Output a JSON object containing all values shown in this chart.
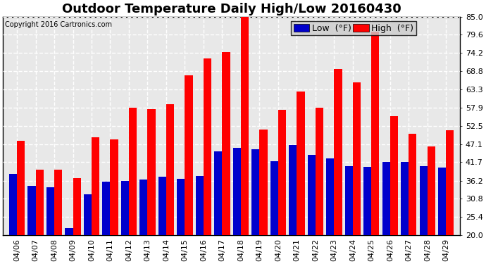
{
  "title": "Outdoor Temperature Daily High/Low 20160430",
  "copyright": "Copyright 2016 Cartronics.com",
  "ylim": [
    20.0,
    85.0
  ],
  "yticks": [
    20.0,
    25.4,
    30.8,
    36.2,
    41.7,
    47.1,
    52.5,
    57.9,
    63.3,
    68.8,
    74.2,
    79.6,
    85.0
  ],
  "dates": [
    "04/06",
    "04/07",
    "04/08",
    "04/09",
    "04/10",
    "04/11",
    "04/12",
    "04/13",
    "04/14",
    "04/15",
    "04/16",
    "04/17",
    "04/18",
    "04/19",
    "04/20",
    "04/21",
    "04/22",
    "04/23",
    "04/24",
    "04/25",
    "04/26",
    "04/27",
    "04/28",
    "04/29"
  ],
  "high": [
    48.0,
    39.5,
    39.5,
    37.0,
    49.0,
    48.5,
    57.9,
    57.5,
    59.0,
    67.5,
    72.5,
    74.5,
    85.1,
    51.5,
    57.2,
    62.8,
    57.8,
    69.5,
    65.5,
    80.6,
    55.4,
    50.2,
    46.4,
    51.3
  ],
  "low": [
    38.3,
    34.7,
    34.3,
    22.1,
    32.2,
    35.8,
    36.1,
    36.5,
    37.4,
    36.7,
    37.6,
    45.0,
    46.0,
    45.5,
    41.9,
    46.9,
    43.9,
    42.8,
    40.6,
    40.3,
    41.7,
    41.7,
    40.5,
    40.1
  ],
  "high_color": "#ff0000",
  "low_color": "#0000cc",
  "bg_color": "#ffffff",
  "grid_color": "#bbbbbb",
  "title_fontsize": 13,
  "tick_fontsize": 8,
  "legend_fontsize": 9,
  "bar_width": 0.42,
  "bar_gap": 0.42
}
